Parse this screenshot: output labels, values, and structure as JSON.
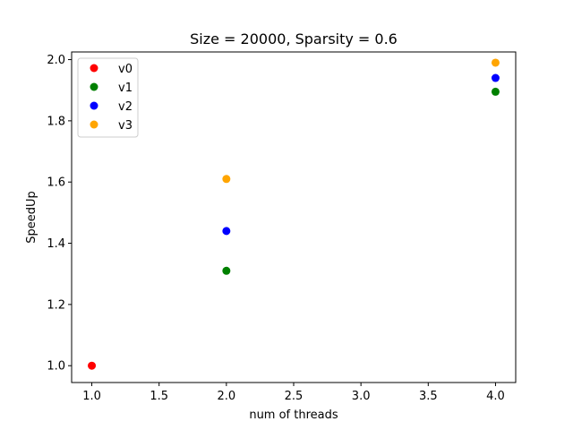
{
  "chart_data": {
    "type": "scatter",
    "title": "Size = 20000, Sparsity = 0.6",
    "xlabel": "num of threads",
    "ylabel": "SpeedUp",
    "xlim": [
      0.85,
      4.15
    ],
    "ylim": [
      0.945,
      2.025
    ],
    "xticks": [
      1.0,
      1.5,
      2.0,
      2.5,
      3.0,
      3.5,
      4.0
    ],
    "xtick_labels": [
      "1.0",
      "1.5",
      "2.0",
      "2.5",
      "3.0",
      "3.5",
      "4.0"
    ],
    "yticks": [
      1.0,
      1.2,
      1.4,
      1.6,
      1.8,
      2.0
    ],
    "ytick_labels": [
      "1.0",
      "1.2",
      "1.4",
      "1.6",
      "1.8",
      "2.0"
    ],
    "grid": false,
    "legend_position": "top-left",
    "series": [
      {
        "name": "v0",
        "color": "#ff0000",
        "points": [
          {
            "x": 1,
            "y": 1.0
          }
        ]
      },
      {
        "name": "v1",
        "color": "#008000",
        "points": [
          {
            "x": 2,
            "y": 1.31
          },
          {
            "x": 4,
            "y": 1.895
          }
        ]
      },
      {
        "name": "v2",
        "color": "#0000ff",
        "points": [
          {
            "x": 2,
            "y": 1.44
          },
          {
            "x": 4,
            "y": 1.94
          }
        ]
      },
      {
        "name": "v3",
        "color": "#ffa500",
        "points": [
          {
            "x": 2,
            "y": 1.61
          },
          {
            "x": 4,
            "y": 1.99
          }
        ]
      }
    ]
  }
}
